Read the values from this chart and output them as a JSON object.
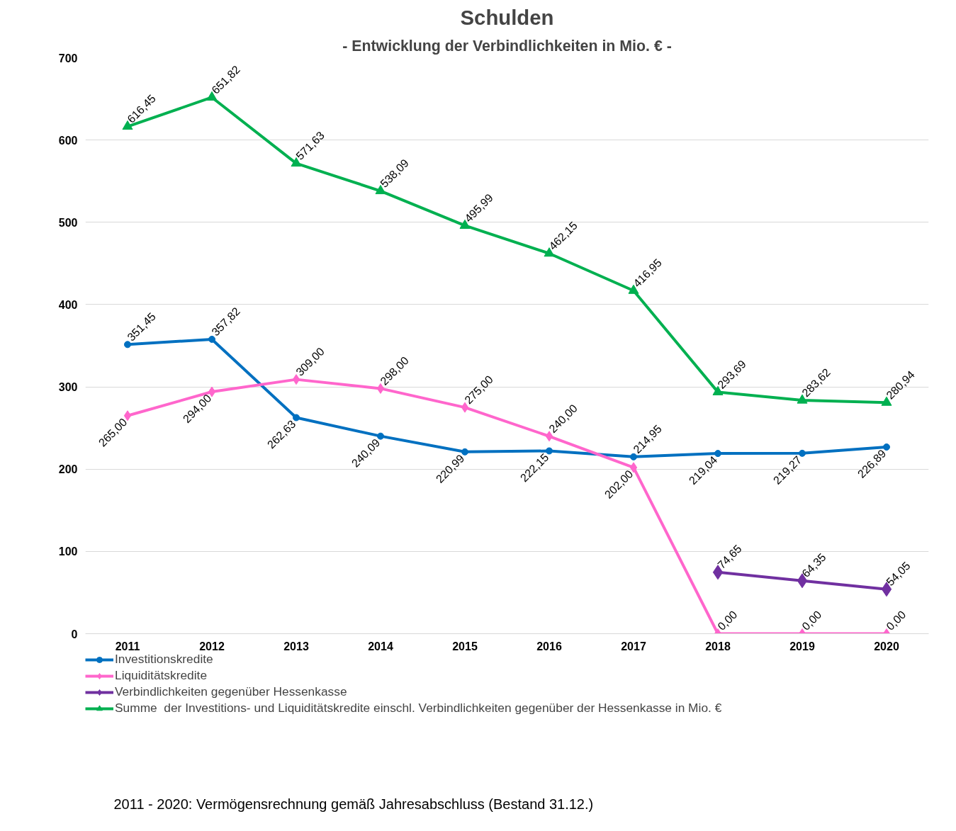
{
  "chart_data": {
    "type": "line",
    "title": "Schulden",
    "subtitle": "- Entwicklung der Verbindlichkeiten in Mio. € -",
    "categories": [
      "2011",
      "2012",
      "2013",
      "2014",
      "2015",
      "2016",
      "2017",
      "2018",
      "2019",
      "2020"
    ],
    "series": [
      {
        "name": "Investitionskredite",
        "color": "#0070c0",
        "marker": "circle",
        "values": [
          351.45,
          357.82,
          262.63,
          240.09,
          220.99,
          222.15,
          214.95,
          219.04,
          219.27,
          226.89
        ],
        "value_labels": [
          "351,45",
          "357,82",
          "262,63",
          "240,09",
          "220,99",
          "222,15",
          "214,95",
          "219,04",
          "219,27",
          "226,89"
        ]
      },
      {
        "name": "Liquiditätskredite",
        "color": "#ff66cc",
        "marker": "diamond",
        "values": [
          265,
          294,
          309,
          298,
          275,
          240,
          202,
          0,
          0,
          0
        ],
        "value_labels": [
          "265,00",
          "294,00",
          "309,00",
          "298,00",
          "275,00",
          "240,00",
          "202,00",
          "0,00",
          "0,00",
          "0,00"
        ]
      },
      {
        "name": "Verbindlichkeiten gegenüber Hessenkasse",
        "color": "#7030a0",
        "marker": "diamond",
        "values": [
          null,
          null,
          null,
          null,
          null,
          null,
          null,
          74.65,
          64.35,
          54.05
        ],
        "value_labels": [
          null,
          null,
          null,
          null,
          null,
          null,
          null,
          "74,65",
          "64,35",
          "54,05"
        ]
      },
      {
        "name": "Summe  der Investitions- und Liquiditätskredite einschl. Verbindlichkeiten gegenüber der Hessenkasse in Mio. €",
        "color": "#00b050",
        "marker": "triangle",
        "values": [
          616.45,
          651.82,
          571.63,
          538.09,
          495.99,
          462.15,
          416.95,
          293.69,
          283.62,
          280.94
        ],
        "value_labels": [
          "616,45",
          "651,82",
          "571,63",
          "538,09",
          "495,99",
          "462,15",
          "416,95",
          "293,69",
          "283,62",
          "280,94"
        ]
      }
    ],
    "ylim": [
      0,
      700
    ],
    "yticks": [
      0,
      100,
      200,
      300,
      400,
      500,
      600,
      700
    ],
    "grid": "y",
    "legend": "bottom",
    "annotations": [
      "2011 - 2020:   Vermögensrechnung  gemäß  Jahresabschluss (Bestand 31.12.)"
    ]
  }
}
